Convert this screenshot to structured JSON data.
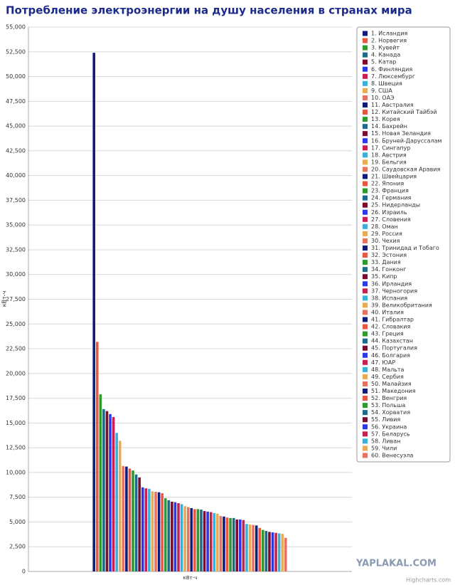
{
  "chart_data": {
    "type": "bar",
    "title": "Потребление электроэнергии на душу населения в странах мира",
    "y_label": "кВт-ч",
    "categories": [
      "кВт-ч"
    ],
    "ylim": [
      0,
      55000
    ],
    "yticks": [
      0,
      {
        "value": 2500,
        "label": "2,500"
      },
      {
        "value": 5000,
        "label": "5,000"
      },
      {
        "value": 7500,
        "label": "7,500"
      },
      {
        "value": 10000,
        "label": "10,000"
      },
      {
        "value": 12500,
        "label": "12,500"
      },
      {
        "value": 15000,
        "label": "15,000"
      },
      {
        "value": 17500,
        "label": "17,500"
      },
      {
        "value": 20000,
        "label": "20,000"
      },
      {
        "value": 22500,
        "label": "22,500"
      },
      {
        "value": 25000,
        "label": "25,000"
      },
      {
        "value": 27500,
        "label": "27,500"
      },
      {
        "value": 30000,
        "label": "30,000"
      },
      {
        "value": 32500,
        "label": "32,500"
      },
      {
        "value": 35000,
        "label": "35,000"
      },
      {
        "value": 37500,
        "label": "37,500"
      },
      {
        "value": 40000,
        "label": "40,000"
      },
      {
        "value": 42500,
        "label": "42,500"
      },
      {
        "value": 45000,
        "label": "45,000"
      },
      {
        "value": 47500,
        "label": "47,500"
      },
      {
        "value": 50000,
        "label": "50,000"
      },
      {
        "value": 52500,
        "label": "52,500"
      },
      {
        "value": 55000,
        "label": "55,000"
      }
    ],
    "grid": true,
    "legend": "right",
    "credits": "Highcharts.com",
    "watermark": "YAPLAKAL.COM",
    "series": [
      {
        "name": "1. Исландия",
        "color": "#101c7c",
        "values": [
          52400
        ]
      },
      {
        "name": "2. Норвегия",
        "color": "#e8573f",
        "values": [
          23200
        ]
      },
      {
        "name": "3. Кувейт",
        "color": "#2c9a2c",
        "values": [
          17900
        ]
      },
      {
        "name": "4. Канада",
        "color": "#1f6a8a",
        "values": [
          16400
        ]
      },
      {
        "name": "5. Катар",
        "color": "#7a0c2c",
        "values": [
          16200
        ]
      },
      {
        "name": "6. Финляндия",
        "color": "#2a3ae6",
        "values": [
          15900
        ]
      },
      {
        "name": "7. Люксембург",
        "color": "#c8204c",
        "values": [
          15600
        ]
      },
      {
        "name": "8. Швеция",
        "color": "#3ab0d8",
        "values": [
          14000
        ]
      },
      {
        "name": "9. США",
        "color": "#e8aa52",
        "values": [
          13200
        ]
      },
      {
        "name": "10. ОАЭ",
        "color": "#e87262",
        "values": [
          10650
        ]
      },
      {
        "name": "11. Австралия",
        "color": "#101c7c",
        "values": [
          10600
        ]
      },
      {
        "name": "12. Китайский Тайбэй",
        "color": "#e8573f",
        "values": [
          10400
        ]
      },
      {
        "name": "13. Корея",
        "color": "#2c9a2c",
        "values": [
          10200
        ]
      },
      {
        "name": "14. Бахрейн",
        "color": "#1f6a8a",
        "values": [
          9800
        ]
      },
      {
        "name": "15. Новая Зеландия",
        "color": "#7a0c2c",
        "values": [
          9500
        ]
      },
      {
        "name": "16. Бруней-Даруссалам",
        "color": "#2a3ae6",
        "values": [
          8500
        ]
      },
      {
        "name": "17. Сингапур",
        "color": "#c8204c",
        "values": [
          8400
        ]
      },
      {
        "name": "18. Австрия",
        "color": "#3ab0d8",
        "values": [
          8350
        ]
      },
      {
        "name": "19. Бельгия",
        "color": "#e8aa52",
        "values": [
          8100
        ]
      },
      {
        "name": "20. Саудовская Аравия",
        "color": "#e87262",
        "values": [
          8050
        ]
      },
      {
        "name": "21. Швейцария",
        "color": "#101c7c",
        "values": [
          8000
        ]
      },
      {
        "name": "22. Япония",
        "color": "#e8573f",
        "values": [
          7900
        ]
      },
      {
        "name": "23. Франция",
        "color": "#2c9a2c",
        "values": [
          7400
        ]
      },
      {
        "name": "24. Германия",
        "color": "#1f6a8a",
        "values": [
          7200
        ]
      },
      {
        "name": "25. Нидерланды",
        "color": "#7a0c2c",
        "values": [
          7050
        ]
      },
      {
        "name": "26. Израиль",
        "color": "#2a3ae6",
        "values": [
          7000
        ]
      },
      {
        "name": "27. Словения",
        "color": "#c8204c",
        "values": [
          6900
        ]
      },
      {
        "name": "28. Оман",
        "color": "#3ab0d8",
        "values": [
          6800
        ]
      },
      {
        "name": "29. Россия",
        "color": "#e8aa52",
        "values": [
          6600
        ]
      },
      {
        "name": "30. Чехия",
        "color": "#e87262",
        "values": [
          6500
        ]
      },
      {
        "name": "31. Тринидад и Тобаго",
        "color": "#101c7c",
        "values": [
          6400
        ]
      },
      {
        "name": "32. Эстония",
        "color": "#e8573f",
        "values": [
          6300
        ]
      },
      {
        "name": "33. Дания",
        "color": "#2c9a2c",
        "values": [
          6300
        ]
      },
      {
        "name": "34. Гонконг",
        "color": "#1f6a8a",
        "values": [
          6250
        ]
      },
      {
        "name": "35. Кипр",
        "color": "#7a0c2c",
        "values": [
          6100
        ]
      },
      {
        "name": "36. Ирландия",
        "color": "#2a3ae6",
        "values": [
          6050
        ]
      },
      {
        "name": "37. Черногория",
        "color": "#c8204c",
        "values": [
          6000
        ]
      },
      {
        "name": "38. Испания",
        "color": "#3ab0d8",
        "values": [
          5900
        ]
      },
      {
        "name": "39. Великобритания",
        "color": "#e8aa52",
        "values": [
          5850
        ]
      },
      {
        "name": "40. Италия",
        "color": "#e87262",
        "values": [
          5600
        ]
      },
      {
        "name": "41. Гибралтар",
        "color": "#101c7c",
        "values": [
          5550
        ]
      },
      {
        "name": "42. Словакия",
        "color": "#e8573f",
        "values": [
          5450
        ]
      },
      {
        "name": "43. Греция",
        "color": "#2c9a2c",
        "values": [
          5400
        ]
      },
      {
        "name": "44. Казахстан",
        "color": "#1f6a8a",
        "values": [
          5400
        ]
      },
      {
        "name": "45. Португалия",
        "color": "#7a0c2c",
        "values": [
          5250
        ]
      },
      {
        "name": "46. Болгария",
        "color": "#2a3ae6",
        "values": [
          5250
        ]
      },
      {
        "name": "47. ЮАР",
        "color": "#c8204c",
        "values": [
          5200
        ]
      },
      {
        "name": "48. Мальта",
        "color": "#3ab0d8",
        "values": [
          4800
        ]
      },
      {
        "name": "49. Сербия",
        "color": "#e8aa52",
        "values": [
          4750
        ]
      },
      {
        "name": "50. Малайзия",
        "color": "#e87262",
        "values": [
          4700
        ]
      },
      {
        "name": "51. Македония",
        "color": "#101c7c",
        "values": [
          4650
        ]
      },
      {
        "name": "52. Венгрия",
        "color": "#e8573f",
        "values": [
          4400
        ]
      },
      {
        "name": "53. Польша",
        "color": "#2c9a2c",
        "values": [
          4200
        ]
      },
      {
        "name": "54. Хорватия",
        "color": "#1f6a8a",
        "values": [
          4100
        ]
      },
      {
        "name": "55. Ливия",
        "color": "#7a0c2c",
        "values": [
          4000
        ]
      },
      {
        "name": "56. Украина",
        "color": "#2a3ae6",
        "values": [
          3950
        ]
      },
      {
        "name": "57. Беларусь",
        "color": "#c8204c",
        "values": [
          3900
        ]
      },
      {
        "name": "58. Ливан",
        "color": "#3ab0d8",
        "values": [
          3850
        ]
      },
      {
        "name": "59. Чили",
        "color": "#e8aa52",
        "values": [
          3800
        ]
      },
      {
        "name": "60. Венесуэла",
        "color": "#e87262",
        "values": [
          3400
        ]
      }
    ]
  }
}
